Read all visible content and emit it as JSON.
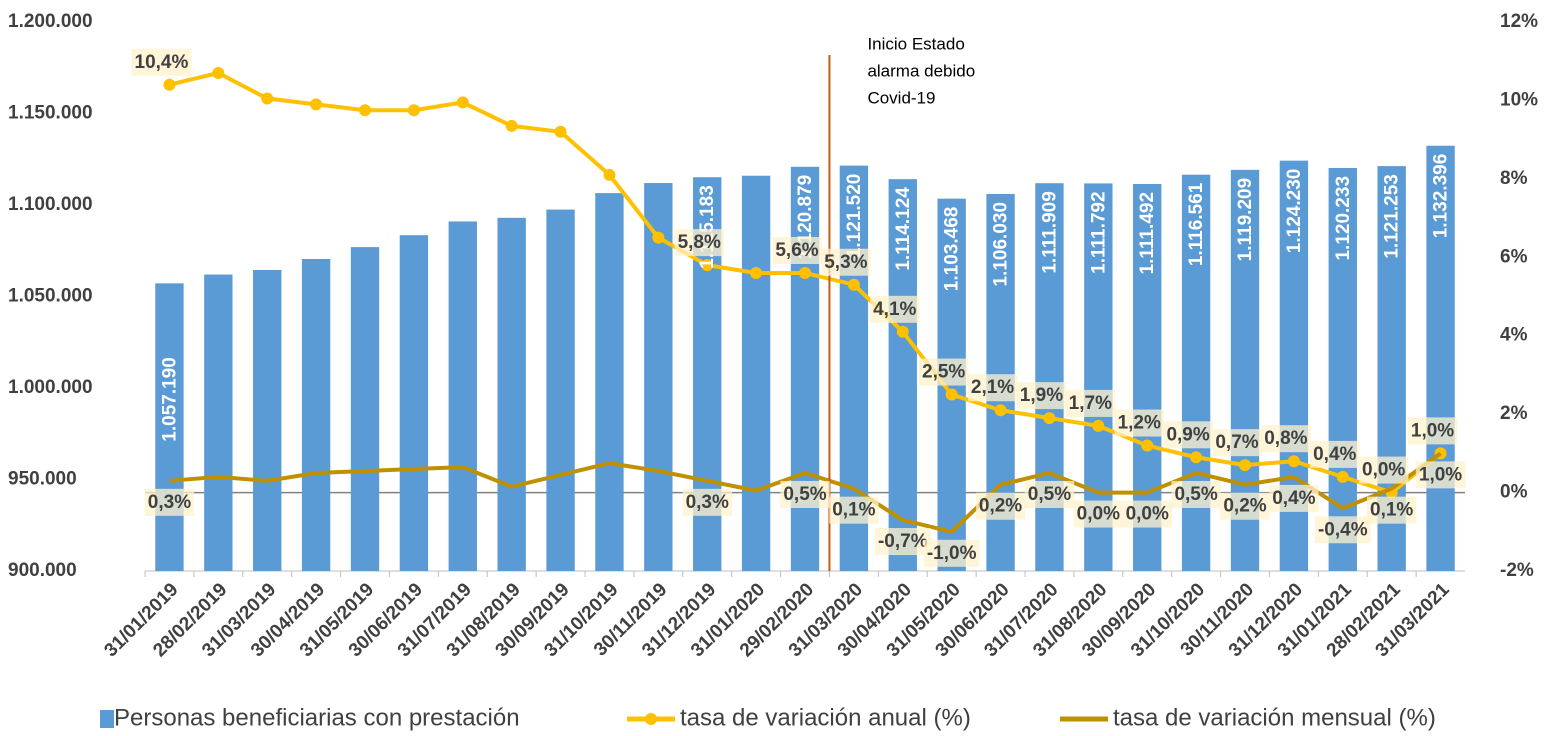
{
  "chart_data": {
    "type": "combo",
    "categories": [
      "31/01/2019",
      "28/02/2019",
      "31/03/2019",
      "30/04/2019",
      "31/05/2019",
      "30/06/2019",
      "31/07/2019",
      "31/08/2019",
      "30/09/2019",
      "31/10/2019",
      "30/11/2019",
      "31/12/2019",
      "31/01/2020",
      "29/02/2020",
      "31/03/2020",
      "30/04/2020",
      "31/05/2020",
      "30/06/2020",
      "31/07/2020",
      "31/08/2020",
      "30/09/2020",
      "31/10/2020",
      "30/11/2020",
      "31/12/2020",
      "31/01/2021",
      "28/02/2021",
      "31/03/2021"
    ],
    "series": [
      {
        "name": "Personas beneficiarias con prestación",
        "type": "bar",
        "color": "#5b9bd5",
        "values": [
          1057190,
          1062000,
          1064500,
          1070500,
          1077000,
          1083500,
          1091000,
          1093000,
          1097500,
          1106500,
          1112000,
          1115183,
          1116000,
          1120879,
          1121520,
          1114124,
          1103468,
          1106030,
          1111909,
          1111792,
          1111492,
          1116561,
          1119209,
          1124230,
          1120233,
          1121253,
          1132396
        ],
        "value_labels": [
          "1.057.190",
          null,
          null,
          null,
          null,
          null,
          null,
          null,
          null,
          null,
          null,
          "1.115.183",
          null,
          "1.120.879",
          "1.121.520",
          "1.114.124",
          "1.103.468",
          "1.106.030",
          "1.111.909",
          "1.111.792",
          "1.111.492",
          "1.116.561",
          "1.119.209",
          "1.124.230",
          "1.120.233",
          "1.121.253",
          "1.132.396"
        ]
      },
      {
        "name": "tasa de variación anual (%)",
        "type": "line",
        "axis": "y2",
        "color": "#ffc000",
        "markers": true,
        "values": [
          10.4,
          10.7,
          10.05,
          9.9,
          9.75,
          9.75,
          9.95,
          9.35,
          9.2,
          8.1,
          6.5,
          5.8,
          5.6,
          5.6,
          5.3,
          4.1,
          2.5,
          2.1,
          1.9,
          1.7,
          1.2,
          0.9,
          0.7,
          0.8,
          0.4,
          0.0,
          1.0
        ],
        "value_labels": [
          "10,4%",
          null,
          null,
          null,
          null,
          null,
          null,
          null,
          null,
          null,
          null,
          "5,8%",
          null,
          "5,6%",
          "5,3%",
          "4,1%",
          "2,5%",
          "2,1%",
          "1,9%",
          "1,7%",
          "1,2%",
          "0,9%",
          "0,7%",
          "0,8%",
          "0,4%",
          "0,0%",
          "1,0%"
        ]
      },
      {
        "name": "tasa de variación mensual (%)",
        "type": "line",
        "axis": "y2",
        "color": "#bf9000",
        "markers": false,
        "values": [
          0.3,
          0.4,
          0.3,
          0.5,
          0.55,
          0.6,
          0.65,
          0.15,
          0.45,
          0.75,
          0.55,
          0.3,
          0.05,
          0.5,
          0.1,
          -0.7,
          -1.0,
          0.2,
          0.5,
          0.0,
          0.0,
          0.5,
          0.2,
          0.4,
          -0.4,
          0.1,
          1.0
        ],
        "value_labels": [
          "0,3%",
          null,
          null,
          null,
          null,
          null,
          null,
          null,
          null,
          null,
          null,
          "0,3%",
          null,
          "0,5%",
          "0,1%",
          "-0,7%",
          "-1,0%",
          "0,2%",
          "0,5%",
          "0,0%",
          "0,0%",
          "0,5%",
          "0,2%",
          "0,4%",
          "-0,4%",
          "0,1%",
          "1,0%"
        ]
      }
    ],
    "ylim": [
      900000,
      1200000
    ],
    "yticks": [
      {
        "value": 900000,
        "label": "900.000"
      },
      {
        "value": 950000,
        "label": "950.000"
      },
      {
        "value": 1000000,
        "label": "1.000.000"
      },
      {
        "value": 1050000,
        "label": "1.050.000"
      },
      {
        "value": 1100000,
        "label": "1.100.000"
      },
      {
        "value": 1150000,
        "label": "1.150.000"
      },
      {
        "value": 1200000,
        "label": "1.200.000"
      }
    ],
    "y2lim": [
      -2,
      12
    ],
    "y2ticks": [
      {
        "value": -2,
        "label": "-2%"
      },
      {
        "value": 0,
        "label": "0%"
      },
      {
        "value": 2,
        "label": "2%"
      },
      {
        "value": 4,
        "label": "4%"
      },
      {
        "value": 6,
        "label": "6%"
      },
      {
        "value": 8,
        "label": "8%"
      },
      {
        "value": 10,
        "label": "10%"
      },
      {
        "value": 12,
        "label": "12%"
      }
    ],
    "annotation": [
      "Inicio Estado",
      "alarma debido",
      "Covid-19"
    ]
  }
}
